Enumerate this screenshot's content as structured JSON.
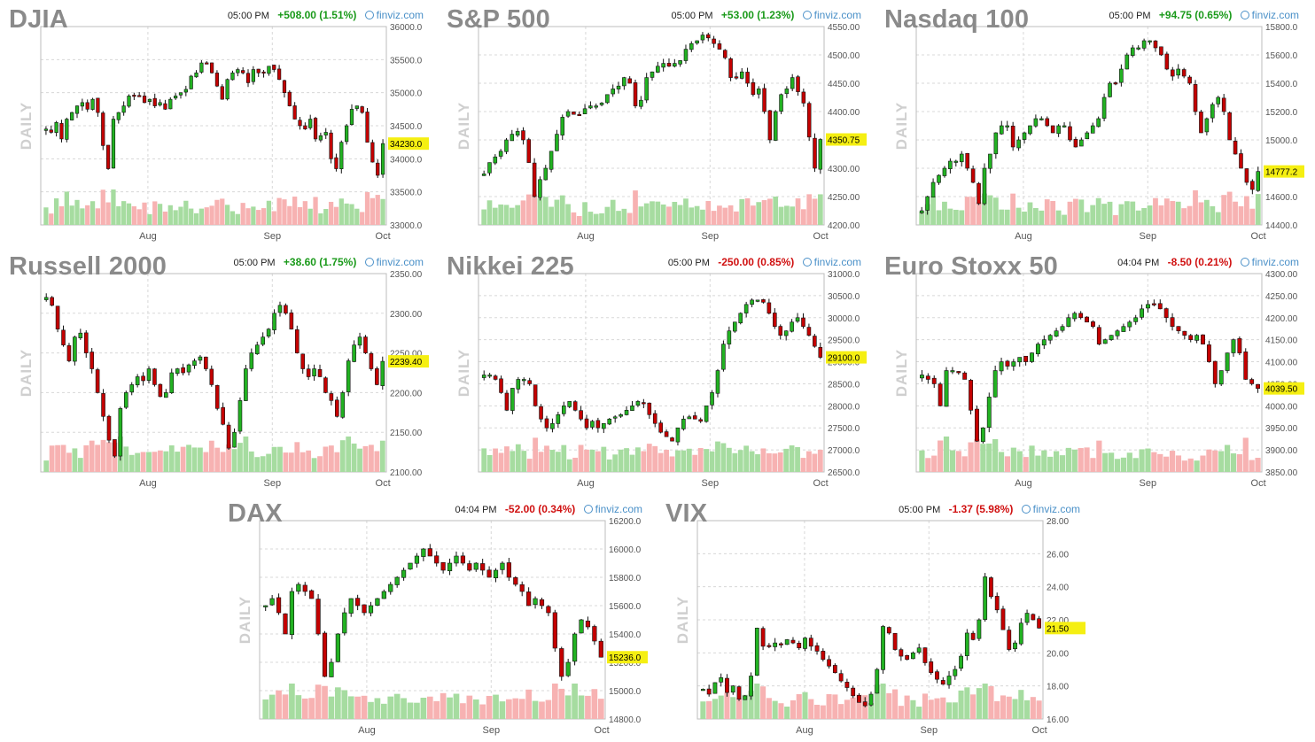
{
  "colors": {
    "up": "#22b222",
    "down": "#c40000",
    "vol_up": "#a6dca0",
    "vol_down": "#f7b2b2",
    "highlight": "#f5ef12",
    "pos_text": "#1a9a1a",
    "neg_text": "#d01010"
  },
  "source_label": "finviz.com",
  "axis_label": "DAILY",
  "chart_data": [
    {
      "type": "candlestick",
      "title": "DJIA",
      "time": "05:00 PM",
      "change": "+508.00 (1.51%)",
      "direction": "up",
      "yticks": [
        "36000.0",
        "35500.0",
        "35000.0",
        "34500.0",
        "34000.0",
        "33500.0",
        "33000.0"
      ],
      "ylim": [
        33000,
        36000
      ],
      "last_label": "34230.0",
      "last_value": 34230,
      "xticks": [
        {
          "label": "Aug",
          "pos": 0.31
        },
        {
          "label": "Sep",
          "pos": 0.67
        },
        {
          "label": "Oct",
          "pos": 0.99
        }
      ],
      "closes": [
        34450,
        34400,
        34550,
        34300,
        34600,
        34700,
        34800,
        34850,
        34750,
        34900,
        34700,
        34200,
        33850,
        34600,
        34700,
        34800,
        34950,
        34950,
        34950,
        34850,
        34900,
        34800,
        34850,
        34750,
        34900,
        34950,
        35000,
        35050,
        35250,
        35300,
        35450,
        35450,
        35300,
        35100,
        34900,
        35200,
        35300,
        35350,
        35300,
        35150,
        35350,
        35300,
        35300,
        35400,
        35350,
        35200,
        35000,
        34800,
        34600,
        34500,
        34450,
        34600,
        34300,
        34350,
        34400,
        34000,
        33850,
        34250,
        34500,
        34750,
        34800,
        34700,
        34250,
        33950,
        33750,
        34230
      ]
    },
    {
      "type": "candlestick",
      "title": "S&P 500",
      "time": "05:00 PM",
      "change": "+53.00 (1.23%)",
      "direction": "up",
      "yticks": [
        "4550.00",
        "4500.00",
        "4450.00",
        "4400.00",
        "4350.00",
        "4300.00",
        "4250.00",
        "4200.00"
      ],
      "ylim": [
        4200,
        4550
      ],
      "last_label": "4350.75",
      "last_value": 4350.75,
      "xticks": [
        {
          "label": "Aug",
          "pos": 0.31
        },
        {
          "label": "Sep",
          "pos": 0.67
        },
        {
          "label": "Oct",
          "pos": 0.99
        }
      ],
      "closes": [
        4290,
        4310,
        4320,
        4330,
        4350,
        4360,
        4365,
        4350,
        4310,
        4250,
        4280,
        4300,
        4330,
        4360,
        4390,
        4400,
        4395,
        4395,
        4405,
        4410,
        4410,
        4415,
        4430,
        4440,
        4445,
        4460,
        4450,
        4410,
        4420,
        4460,
        4470,
        4480,
        4485,
        4480,
        4485,
        4490,
        4510,
        4520,
        4525,
        4535,
        4530,
        4520,
        4510,
        4495,
        4460,
        4460,
        4470,
        4450,
        4430,
        4440,
        4400,
        4350,
        4400,
        4430,
        4440,
        4460,
        4435,
        4415,
        4355,
        4300,
        4350.75
      ]
    },
    {
      "type": "candlestick",
      "title": "Nasdaq 100",
      "time": "05:00 PM",
      "change": "+94.75 (0.65%)",
      "direction": "up",
      "yticks": [
        "15800.0",
        "15600.0",
        "15400.0",
        "15200.0",
        "15000.0",
        "14800.0",
        "14600.0",
        "14400.0"
      ],
      "ylim": [
        14400,
        15800
      ],
      "last_label": "14777.2",
      "last_value": 14777.25,
      "xticks": [
        {
          "label": "Aug",
          "pos": 0.31
        },
        {
          "label": "Sep",
          "pos": 0.67
        },
        {
          "label": "Oct",
          "pos": 0.99
        }
      ],
      "closes": [
        14500,
        14600,
        14700,
        14750,
        14800,
        14850,
        14850,
        14900,
        14800,
        14700,
        14550,
        14800,
        14900,
        15050,
        15100,
        15100,
        14950,
        15000,
        15050,
        15100,
        15150,
        15150,
        15100,
        15050,
        15100,
        15100,
        15000,
        14950,
        15000,
        15050,
        15100,
        15150,
        15300,
        15400,
        15400,
        15500,
        15600,
        15650,
        15650,
        15700,
        15700,
        15650,
        15600,
        15500,
        15450,
        15500,
        15450,
        15400,
        15200,
        15050,
        15150,
        15250,
        15300,
        15200,
        15000,
        14900,
        14800,
        14700,
        14650,
        14777.25
      ]
    },
    {
      "type": "candlestick",
      "title": "Russell 2000",
      "time": "05:00 PM",
      "change": "+38.60 (1.75%)",
      "direction": "up",
      "yticks": [
        "2350.00",
        "2300.00",
        "2250.00",
        "2200.00",
        "2150.00",
        "2100.00"
      ],
      "ylim": [
        2100,
        2350
      ],
      "last_label": "2239.40",
      "last_value": 2239.4,
      "xticks": [
        {
          "label": "Aug",
          "pos": 0.31
        },
        {
          "label": "Sep",
          "pos": 0.67
        },
        {
          "label": "Oct",
          "pos": 0.99
        }
      ],
      "closes": [
        2320,
        2310,
        2280,
        2260,
        2240,
        2270,
        2275,
        2250,
        2230,
        2200,
        2170,
        2140,
        2120,
        2180,
        2200,
        2210,
        2220,
        2215,
        2230,
        2210,
        2195,
        2200,
        2225,
        2230,
        2225,
        2235,
        2240,
        2245,
        2230,
        2210,
        2180,
        2160,
        2130,
        2150,
        2190,
        2230,
        2250,
        2260,
        2270,
        2280,
        2300,
        2310,
        2300,
        2280,
        2250,
        2230,
        2220,
        2230,
        2220,
        2200,
        2190,
        2170,
        2200,
        2240,
        2260,
        2270,
        2250,
        2230,
        2210,
        2239.4
      ]
    },
    {
      "type": "candlestick",
      "title": "Nikkei 225",
      "time": "05:00 PM",
      "change": "-250.00 (0.85%)",
      "direction": "down",
      "yticks": [
        "31000.0",
        "30500.0",
        "30000.0",
        "29500.0",
        "29000.0",
        "28500.0",
        "28000.0",
        "27500.0",
        "27000.0",
        "26500.0"
      ],
      "ylim": [
        26500,
        31000
      ],
      "last_label": "29100.0",
      "last_value": 29100,
      "xticks": [
        {
          "label": "Aug",
          "pos": 0.31
        },
        {
          "label": "Sep",
          "pos": 0.67
        },
        {
          "label": "Oct",
          "pos": 0.99
        }
      ],
      "closes": [
        28700,
        28700,
        28600,
        28300,
        27900,
        28400,
        28600,
        28600,
        28500,
        28000,
        27700,
        27500,
        27600,
        27800,
        28000,
        28100,
        27900,
        27700,
        27500,
        27650,
        27500,
        27600,
        27700,
        27750,
        27800,
        27900,
        28000,
        28100,
        28050,
        27800,
        27600,
        27400,
        27300,
        27200,
        27500,
        27700,
        27750,
        27700,
        27650,
        28000,
        28300,
        28800,
        29400,
        29700,
        29900,
        30100,
        30300,
        30400,
        30400,
        30350,
        30100,
        29800,
        29600,
        29700,
        29900,
        30000,
        29800,
        29600,
        29350,
        29100
      ]
    },
    {
      "type": "candlestick",
      "title": "Euro Stoxx 50",
      "time": "04:04 PM",
      "change": "-8.50 (0.21%)",
      "direction": "down",
      "yticks": [
        "4300.00",
        "4250.00",
        "4200.00",
        "4150.00",
        "4100.00",
        "4050.00",
        "4000.00",
        "3950.00",
        "3900.00",
        "3850.00"
      ],
      "ylim": [
        3850,
        4300
      ],
      "last_label": "4039.50",
      "last_value": 4039.5,
      "xticks": [
        {
          "label": "Aug",
          "pos": 0.31
        },
        {
          "label": "Sep",
          "pos": 0.67
        },
        {
          "label": "Oct",
          "pos": 0.99
        }
      ],
      "closes": [
        4070,
        4060,
        4050,
        4000,
        4080,
        4080,
        4075,
        4060,
        3990,
        3920,
        3950,
        4020,
        4080,
        4100,
        4090,
        4100,
        4110,
        4100,
        4120,
        4140,
        4150,
        4160,
        4170,
        4180,
        4200,
        4210,
        4200,
        4190,
        4180,
        4140,
        4150,
        4160,
        4170,
        4180,
        4190,
        4200,
        4220,
        4230,
        4230,
        4220,
        4200,
        4180,
        4170,
        4160,
        4150,
        4160,
        4140,
        4100,
        4050,
        4080,
        4120,
        4150,
        4120,
        4060,
        4050,
        4039.5
      ]
    },
    {
      "type": "candlestick",
      "title": "DAX",
      "time": "04:04 PM",
      "change": "-52.00 (0.34%)",
      "direction": "down",
      "yticks": [
        "16200.0",
        "16000.0",
        "15800.0",
        "15600.0",
        "15400.0",
        "15200.0",
        "15000.0",
        "14800.0"
      ],
      "ylim": [
        14800,
        16200
      ],
      "last_label": "15236.0",
      "last_value": 15236,
      "xticks": [
        {
          "label": "Aug",
          "pos": 0.31
        },
        {
          "label": "Sep",
          "pos": 0.67
        },
        {
          "label": "Oct",
          "pos": 0.99
        }
      ],
      "closes": [
        15600,
        15650,
        15550,
        15400,
        15700,
        15750,
        15700,
        15650,
        15400,
        15100,
        15200,
        15400,
        15550,
        15650,
        15600,
        15550,
        15600,
        15650,
        15700,
        15750,
        15800,
        15850,
        15900,
        15950,
        16000,
        15950,
        15900,
        15850,
        15900,
        15950,
        15900,
        15850,
        15900,
        15850,
        15800,
        15850,
        15900,
        15800,
        15750,
        15700,
        15600,
        15650,
        15600,
        15550,
        15300,
        15100,
        15200,
        15400,
        15500,
        15450,
        15350,
        15236
      ]
    },
    {
      "type": "candlestick",
      "title": "VIX",
      "time": "05:00 PM",
      "change": "-1.37 (5.98%)",
      "direction": "down",
      "yticks": [
        "28.00",
        "26.00",
        "24.00",
        "22.00",
        "20.00",
        "18.00",
        "16.00"
      ],
      "ylim": [
        16,
        28
      ],
      "last_label": "21.50",
      "last_value": 21.5,
      "xticks": [
        {
          "label": "Aug",
          "pos": 0.31
        },
        {
          "label": "Sep",
          "pos": 0.67
        },
        {
          "label": "Oct",
          "pos": 0.99
        }
      ],
      "closes": [
        17.8,
        17.5,
        18.2,
        18.5,
        17.6,
        18.0,
        17.2,
        17.4,
        18.6,
        21.5,
        20.4,
        20.4,
        20.6,
        20.5,
        20.8,
        20.6,
        20.3,
        20.9,
        20.4,
        20.1,
        19.6,
        19.2,
        18.8,
        18.3,
        17.9,
        17.4,
        17.0,
        16.8,
        17.5,
        19.0,
        21.6,
        21.2,
        20.2,
        19.8,
        19.6,
        20.0,
        20.3,
        19.4,
        18.8,
        18.4,
        18.1,
        18.6,
        19.0,
        19.8,
        21.2,
        20.8,
        22.0,
        24.6,
        23.4,
        22.6,
        21.4,
        20.2,
        20.6,
        21.8,
        22.4,
        22.0,
        21.5
      ]
    }
  ]
}
